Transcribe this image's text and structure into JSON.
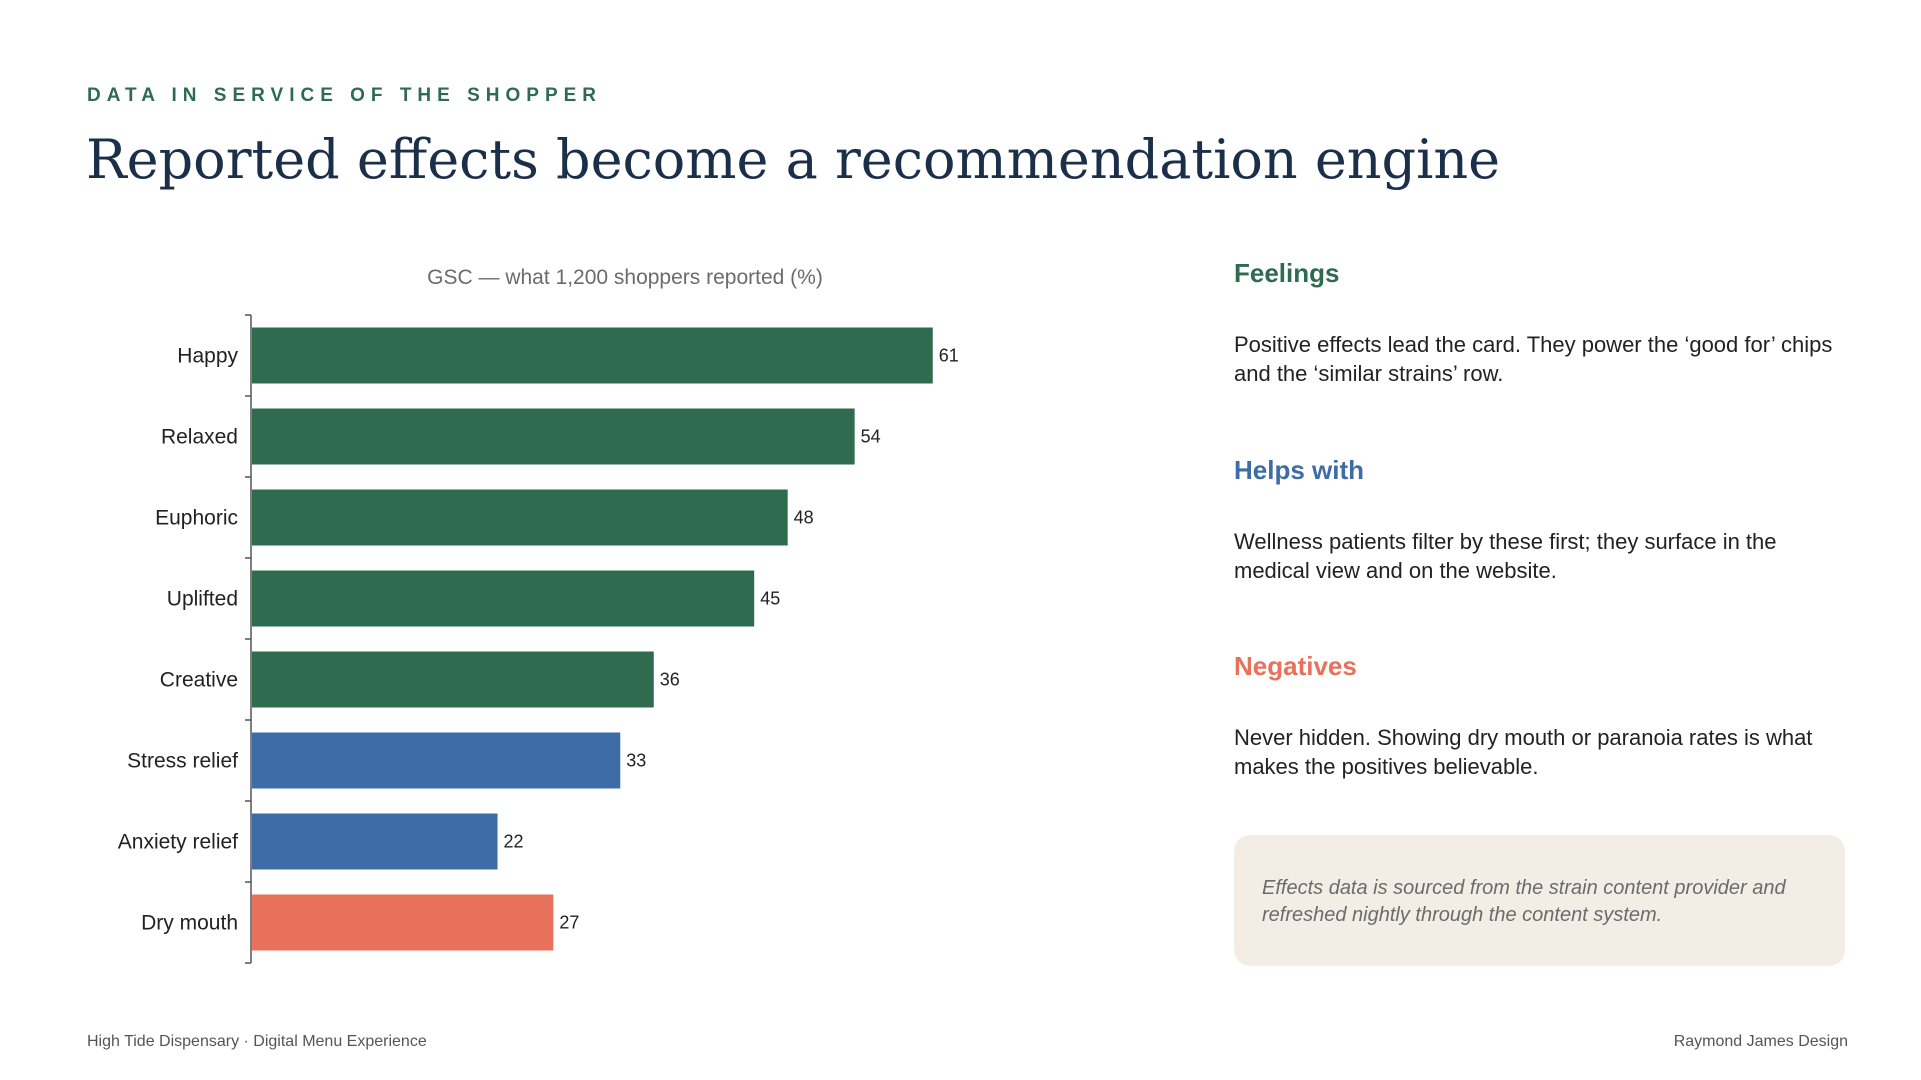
{
  "header": {
    "eyebrow": "DATA IN SERVICE OF THE SHOPPER",
    "title": "Reported effects become a recommendation engine"
  },
  "colors": {
    "feelings": "#2e6b4f",
    "helps_with": "#3d6ca6",
    "negatives": "#e8715b"
  },
  "chart_data": {
    "type": "bar",
    "orientation": "horizontal",
    "title": "GSC — what 1,200 shoppers reported (%)",
    "categories": [
      "Happy",
      "Relaxed",
      "Euphoric",
      "Uplifted",
      "Creative",
      "Stress relief",
      "Anxiety relief",
      "Dry mouth"
    ],
    "values": [
      61,
      54,
      48,
      45,
      36,
      33,
      22,
      27
    ],
    "groups": [
      "feelings",
      "feelings",
      "feelings",
      "feelings",
      "feelings",
      "helps_with",
      "helps_with",
      "negatives"
    ],
    "xlim": [
      0,
      70
    ],
    "grid": false,
    "legend": "none"
  },
  "sections": [
    {
      "heading": "Feelings",
      "body": "Positive effects lead the card. They power the ‘good for’ chips and the ‘similar strains’ row."
    },
    {
      "heading": "Helps with",
      "body": "Wellness patients filter by these first; they surface in the medical view and on the website."
    },
    {
      "heading": "Negatives",
      "body": "Never hidden. Showing dry mouth or paranoia rates is what makes the positives believable."
    }
  ],
  "note": "Effects data is sourced from the strain content provider and refreshed nightly through the content system.",
  "footer": {
    "left": "High Tide Dispensary · Digital Menu Experience",
    "right": "Raymond James Design"
  }
}
